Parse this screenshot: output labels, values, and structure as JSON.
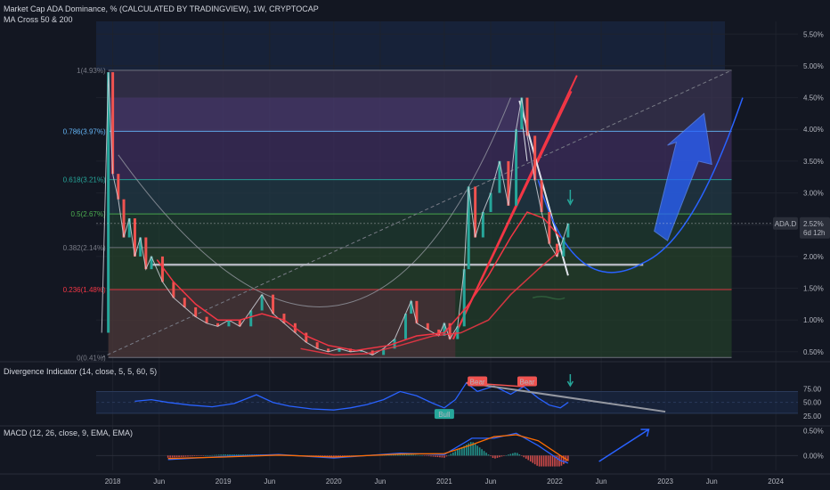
{
  "header": {
    "title": "Market Cap ADA Dominance, % (CALCULATED BY TRADINGVIEW), 1W, CRYPTOCAP",
    "indicator": "MA Cross 50 & 200"
  },
  "panels": {
    "divergence_label": "Divergence Indicator (14, close, 5, 5, 60, 5)",
    "macd_label": "MACD (12, 26, close, 9, EMA, EMA)"
  },
  "price_tag": {
    "symbol": "ADA.D",
    "value": "2.52%",
    "countdown": "6d 12h"
  },
  "colors": {
    "background": "#131722",
    "price_line": "#d1d4dc",
    "ma50": "#f23645",
    "ma200": "#f23645",
    "divergence": "#2962ff",
    "bull": "#26a69a",
    "bear": "#ef5350",
    "fib_upper": "#4a3f7a",
    "fib_lower": "#7a2a3a"
  },
  "chart_data": [
    {
      "type": "line",
      "name": "main",
      "x_ticks": [
        "2018",
        "Jun",
        "2019",
        "Jun",
        "2020",
        "Jun",
        "2021",
        "Jun",
        "2022",
        "Jun",
        "2023",
        "Jun",
        "2024"
      ],
      "y_ticks": [
        "5.50%",
        "5.00%",
        "4.50%",
        "4.00%",
        "3.50%",
        "3.00%",
        "2.50%",
        "2.00%",
        "1.50%",
        "1.00%",
        "0.50%"
      ],
      "ylim": [
        0.4,
        5.7
      ],
      "fib_levels": [
        {
          "label": "1(4.93%)",
          "value": 4.93
        },
        {
          "label": "0.786(3.97%)",
          "value": 3.97
        },
        {
          "label": "0.618(3.21%)",
          "value": 3.21
        },
        {
          "label": "0.5(2.67%)",
          "value": 2.67
        },
        {
          "label": "0.382(2.14%)",
          "value": 2.14
        },
        {
          "label": "0.236(1.48%)",
          "value": 1.48
        },
        {
          "label": "0(0.41%)",
          "value": 0.41
        }
      ],
      "series_close": [
        [
          2017.9,
          0.8
        ],
        [
          2017.96,
          4.9
        ],
        [
          2018.0,
          3.3
        ],
        [
          2018.05,
          2.9
        ],
        [
          2018.1,
          2.3
        ],
        [
          2018.15,
          2.6
        ],
        [
          2018.2,
          2.0
        ],
        [
          2018.25,
          2.3
        ],
        [
          2018.3,
          1.8
        ],
        [
          2018.35,
          2.0
        ],
        [
          2018.45,
          1.6
        ],
        [
          2018.55,
          1.35
        ],
        [
          2018.65,
          1.2
        ],
        [
          2018.75,
          1.05
        ],
        [
          2018.85,
          0.95
        ],
        [
          2018.95,
          0.9
        ],
        [
          2019.05,
          1.0
        ],
        [
          2019.15,
          0.9
        ],
        [
          2019.25,
          1.15
        ],
        [
          2019.35,
          1.4
        ],
        [
          2019.45,
          1.1
        ],
        [
          2019.55,
          0.95
        ],
        [
          2019.65,
          0.8
        ],
        [
          2019.75,
          0.65
        ],
        [
          2019.85,
          0.55
        ],
        [
          2019.95,
          0.5
        ],
        [
          2020.05,
          0.55
        ],
        [
          2020.15,
          0.5
        ],
        [
          2020.25,
          0.52
        ],
        [
          2020.35,
          0.45
        ],
        [
          2020.45,
          0.55
        ],
        [
          2020.55,
          0.7
        ],
        [
          2020.65,
          1.1
        ],
        [
          2020.7,
          1.3
        ],
        [
          2020.75,
          0.95
        ],
        [
          2020.85,
          0.85
        ],
        [
          2020.95,
          0.75
        ],
        [
          2021.0,
          0.95
        ],
        [
          2021.05,
          0.7
        ],
        [
          2021.12,
          0.9
        ],
        [
          2021.18,
          1.8
        ],
        [
          2021.22,
          3.1
        ],
        [
          2021.28,
          2.3
        ],
        [
          2021.35,
          2.7
        ],
        [
          2021.42,
          3.0
        ],
        [
          2021.5,
          3.5
        ],
        [
          2021.58,
          2.8
        ],
        [
          2021.65,
          4.0
        ],
        [
          2021.7,
          4.5
        ],
        [
          2021.75,
          3.9
        ],
        [
          2021.82,
          3.2
        ],
        [
          2021.88,
          2.7
        ],
        [
          2021.95,
          2.2
        ],
        [
          2022.02,
          2.0
        ],
        [
          2022.08,
          2.3
        ],
        [
          2022.12,
          2.52
        ]
      ],
      "ma50": [
        [
          2018.4,
          1.95
        ],
        [
          2018.55,
          1.6
        ],
        [
          2018.75,
          1.25
        ],
        [
          2018.95,
          1.0
        ],
        [
          2019.15,
          1.0
        ],
        [
          2019.35,
          1.1
        ],
        [
          2019.55,
          1.0
        ],
        [
          2019.75,
          0.75
        ],
        [
          2019.95,
          0.6
        ],
        [
          2020.2,
          0.52
        ],
        [
          2020.5,
          0.6
        ],
        [
          2020.75,
          0.75
        ],
        [
          2021.0,
          0.8
        ],
        [
          2021.2,
          1.2
        ],
        [
          2021.4,
          1.7
        ],
        [
          2021.6,
          2.3
        ],
        [
          2021.75,
          2.7
        ],
        [
          2021.9,
          2.6
        ],
        [
          2022.05,
          2.3
        ]
      ],
      "ma200": [
        [
          2019.7,
          0.55
        ],
        [
          2020.0,
          0.45
        ],
        [
          2020.3,
          0.47
        ],
        [
          2020.6,
          0.6
        ],
        [
          2020.9,
          0.75
        ],
        [
          2021.15,
          0.8
        ],
        [
          2021.4,
          1.0
        ],
        [
          2021.6,
          1.4
        ],
        [
          2021.85,
          1.8
        ],
        [
          2022.05,
          2.1
        ]
      ]
    },
    {
      "type": "line",
      "name": "divergence",
      "y_ticks": [
        "75.00",
        "50.00",
        "25.00"
      ],
      "ylim": [
        20,
        92
      ],
      "bull_label": "Bull",
      "bear_labels": [
        "Bear",
        "Bear"
      ],
      "values": [
        [
          2018.2,
          52
        ],
        [
          2018.35,
          55
        ],
        [
          2018.5,
          50
        ],
        [
          2018.7,
          45
        ],
        [
          2018.9,
          42
        ],
        [
          2019.1,
          48
        ],
        [
          2019.3,
          64
        ],
        [
          2019.45,
          50
        ],
        [
          2019.6,
          43
        ],
        [
          2019.8,
          38
        ],
        [
          2020.0,
          36
        ],
        [
          2020.15,
          40
        ],
        [
          2020.3,
          46
        ],
        [
          2020.45,
          55
        ],
        [
          2020.6,
          70
        ],
        [
          2020.75,
          62
        ],
        [
          2020.9,
          48
        ],
        [
          2021.0,
          40
        ],
        [
          2021.1,
          55
        ],
        [
          2021.2,
          86
        ],
        [
          2021.3,
          70
        ],
        [
          2021.45,
          80
        ],
        [
          2021.6,
          65
        ],
        [
          2021.72,
          79
        ],
        [
          2021.85,
          58
        ],
        [
          2021.95,
          45
        ],
        [
          2022.05,
          40
        ],
        [
          2022.12,
          50
        ]
      ]
    },
    {
      "type": "bar",
      "name": "macd",
      "y_ticks": [
        "0.50%",
        "0.00%"
      ],
      "ylim": [
        -0.3,
        0.6
      ],
      "macd_line": [
        [
          2018.5,
          -0.08
        ],
        [
          2019.0,
          -0.02
        ],
        [
          2019.5,
          0.02
        ],
        [
          2020.0,
          -0.05
        ],
        [
          2020.6,
          0.05
        ],
        [
          2021.0,
          0.02
        ],
        [
          2021.25,
          0.35
        ],
        [
          2021.45,
          0.35
        ],
        [
          2021.65,
          0.45
        ],
        [
          2021.85,
          0.2
        ],
        [
          2022.05,
          -0.1
        ],
        [
          2022.12,
          -0.15
        ]
      ],
      "signal_line": [
        [
          2018.5,
          -0.06
        ],
        [
          2019.0,
          -0.03
        ],
        [
          2019.5,
          0.01
        ],
        [
          2020.0,
          -0.03
        ],
        [
          2020.6,
          0.03
        ],
        [
          2021.0,
          0.04
        ],
        [
          2021.25,
          0.22
        ],
        [
          2021.45,
          0.38
        ],
        [
          2021.65,
          0.42
        ],
        [
          2021.85,
          0.3
        ],
        [
          2022.05,
          0.0
        ],
        [
          2022.12,
          -0.1
        ]
      ]
    }
  ]
}
